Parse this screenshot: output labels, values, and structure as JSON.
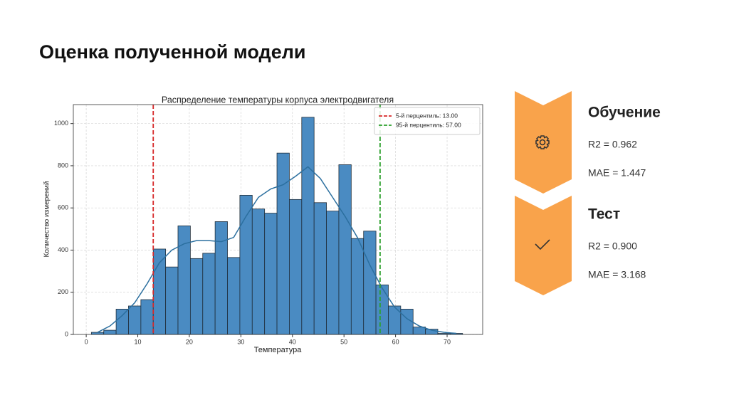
{
  "slide_title": "Оценка полученной модели",
  "chart_data": {
    "type": "histogram",
    "title": "Распределение температуры корпуса электродвигателя",
    "x_label": "Температура",
    "y_label": "Количество измерений",
    "bins": [
      1,
      3.4,
      5.8,
      8.2,
      10.6,
      13,
      15.4,
      17.8,
      20.2,
      22.6,
      25,
      27.4,
      29.8,
      32.2,
      34.6,
      37,
      39.4,
      41.8,
      44.2,
      46.6,
      49,
      51.4,
      53.8,
      56.2,
      58.6,
      61,
      63.4,
      65.8,
      68.2,
      70.6,
      73
    ],
    "values": [
      10,
      20,
      120,
      135,
      165,
      405,
      320,
      515,
      360,
      385,
      535,
      365,
      660,
      595,
      575,
      860,
      640,
      1030,
      625,
      585,
      805,
      455,
      490,
      235,
      135,
      120,
      35,
      25,
      5,
      5
    ],
    "color": "#4a8bc2",
    "edgecolor": "#1f2d3a",
    "kde": {
      "x": [
        2.2,
        4.6,
        7,
        9.4,
        11.8,
        14.2,
        16.6,
        19,
        21.4,
        23.8,
        26.2,
        28.6,
        31,
        33.4,
        35.8,
        38.2,
        40.6,
        43,
        45.4,
        47.8,
        50.2,
        52.6,
        55,
        57.4,
        59.8,
        62.2,
        64.6,
        67,
        69.4,
        71.8
      ],
      "values": [
        10,
        40,
        90,
        150,
        240,
        340,
        400,
        430,
        445,
        445,
        440,
        460,
        560,
        650,
        690,
        710,
        750,
        795,
        740,
        650,
        560,
        460,
        330,
        220,
        130,
        75,
        40,
        20,
        10,
        5
      ],
      "color": "#2b6f9f"
    },
    "vlines": [
      {
        "name": "5-й перцентиль: 13.00",
        "x": 13,
        "color": "#d62728"
      },
      {
        "name": "95-й перцентиль: 57.00",
        "x": 57,
        "color": "#2ca02c"
      }
    ],
    "xlim": [
      -2.5,
      76.9
    ],
    "ylim": [
      0,
      1090
    ],
    "xticks": [
      0,
      10,
      20,
      30,
      40,
      50,
      60,
      70
    ],
    "yticks": [
      0,
      200,
      400,
      600,
      800,
      1000
    ],
    "grid": true,
    "legend": "upper right"
  },
  "panels": [
    {
      "title": "Обучение",
      "metrics": [
        "R2 = 0.962",
        "MAE = 1.447"
      ]
    },
    {
      "title": "Тест",
      "metrics": [
        "R2 = 0.900",
        "MAE = 3.168"
      ]
    }
  ]
}
